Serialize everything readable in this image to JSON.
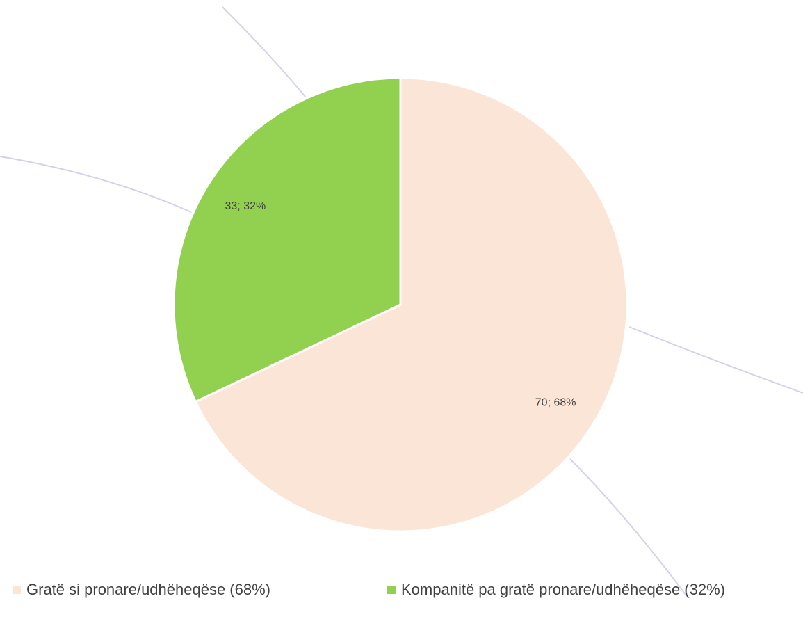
{
  "chart_data": {
    "type": "pie",
    "categories": [
      "Gratë si pronare/udhëheqëse  (68%)",
      "Kompanitë pa gratë pronare/udhëheqëse (32%)"
    ],
    "values": [
      70,
      33
    ],
    "value_labels": [
      "70; 68%",
      "33; 32%"
    ],
    "colors": [
      "#fbe5d6",
      "#92d050"
    ],
    "legend": "bottom"
  }
}
